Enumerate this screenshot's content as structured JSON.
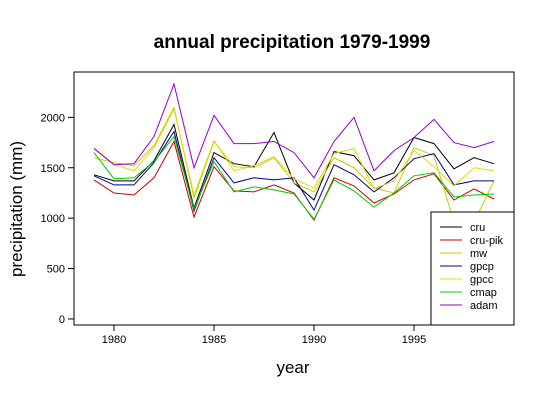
{
  "chart_data": {
    "type": "line",
    "title": "annual precipitation 1979-1999",
    "xlabel": "year",
    "ylabel": "precipitation (mm)",
    "xlim": [
      1978,
      2000
    ],
    "ylim": [
      -60,
      2450
    ],
    "xticks": [
      1980,
      1985,
      1990,
      1995
    ],
    "yticks": [
      0,
      500,
      1000,
      1500,
      2000
    ],
    "x": [
      1979,
      1980,
      1981,
      1982,
      1983,
      1984,
      1985,
      1986,
      1987,
      1988,
      1989,
      1990,
      1991,
      1992,
      1993,
      1994,
      1995,
      1996,
      1997,
      1998,
      1999
    ],
    "legend_position": "bottom-right",
    "grid": false,
    "series": [
      {
        "name": "cru",
        "color": "#000000",
        "values": [
          1430,
          1370,
          1370,
          1570,
          1930,
          1100,
          1650,
          1540,
          1510,
          1850,
          1350,
          1180,
          1660,
          1620,
          1380,
          1450,
          1800,
          1740,
          1490,
          1600,
          1540
        ]
      },
      {
        "name": "cru-pik",
        "color": "#cc0000",
        "values": [
          1380,
          1250,
          1230,
          1400,
          1760,
          1010,
          1510,
          1270,
          1260,
          1330,
          1250,
          980,
          1400,
          1320,
          1150,
          1240,
          1380,
          1440,
          1180,
          1290,
          1190
        ]
      },
      {
        "name": "mw",
        "color": "#cccc00",
        "values": [
          1600,
          1550,
          1520,
          1720,
          2100,
          1200,
          1760,
          1510,
          1500,
          1600,
          1350,
          1260,
          1600,
          1500,
          1300,
          1250,
          1700,
          1620,
          960,
          960,
          1370
        ]
      },
      {
        "name": "gpcp",
        "color": "#000099",
        "values": [
          1420,
          1330,
          1330,
          1550,
          1860,
          1070,
          1600,
          1350,
          1400,
          1380,
          1400,
          1080,
          1530,
          1430,
          1260,
          1400,
          1590,
          1640,
          1330,
          1370,
          1370
        ]
      },
      {
        "name": "gpcc",
        "color": "#dddd00",
        "values": [
          1700,
          1530,
          1470,
          1700,
          2080,
          1230,
          1770,
          1470,
          1520,
          1610,
          1390,
          1300,
          1640,
          1690,
          1290,
          1370,
          1670,
          1510,
          1320,
          1500,
          1470
        ]
      },
      {
        "name": "cmap",
        "color": "#00cc00",
        "values": [
          1650,
          1390,
          1400,
          1560,
          1810,
          1090,
          1560,
          1260,
          1310,
          1280,
          1240,
          990,
          1380,
          1270,
          1110,
          1250,
          1420,
          1450,
          1210,
          1230,
          1240
        ]
      },
      {
        "name": "adam",
        "color": "#9900cc",
        "values": [
          1690,
          1530,
          1540,
          1810,
          2330,
          1500,
          2020,
          1740,
          1740,
          1760,
          1650,
          1400,
          1760,
          2000,
          1470,
          1670,
          1800,
          1980,
          1750,
          1700,
          1760
        ]
      }
    ]
  }
}
